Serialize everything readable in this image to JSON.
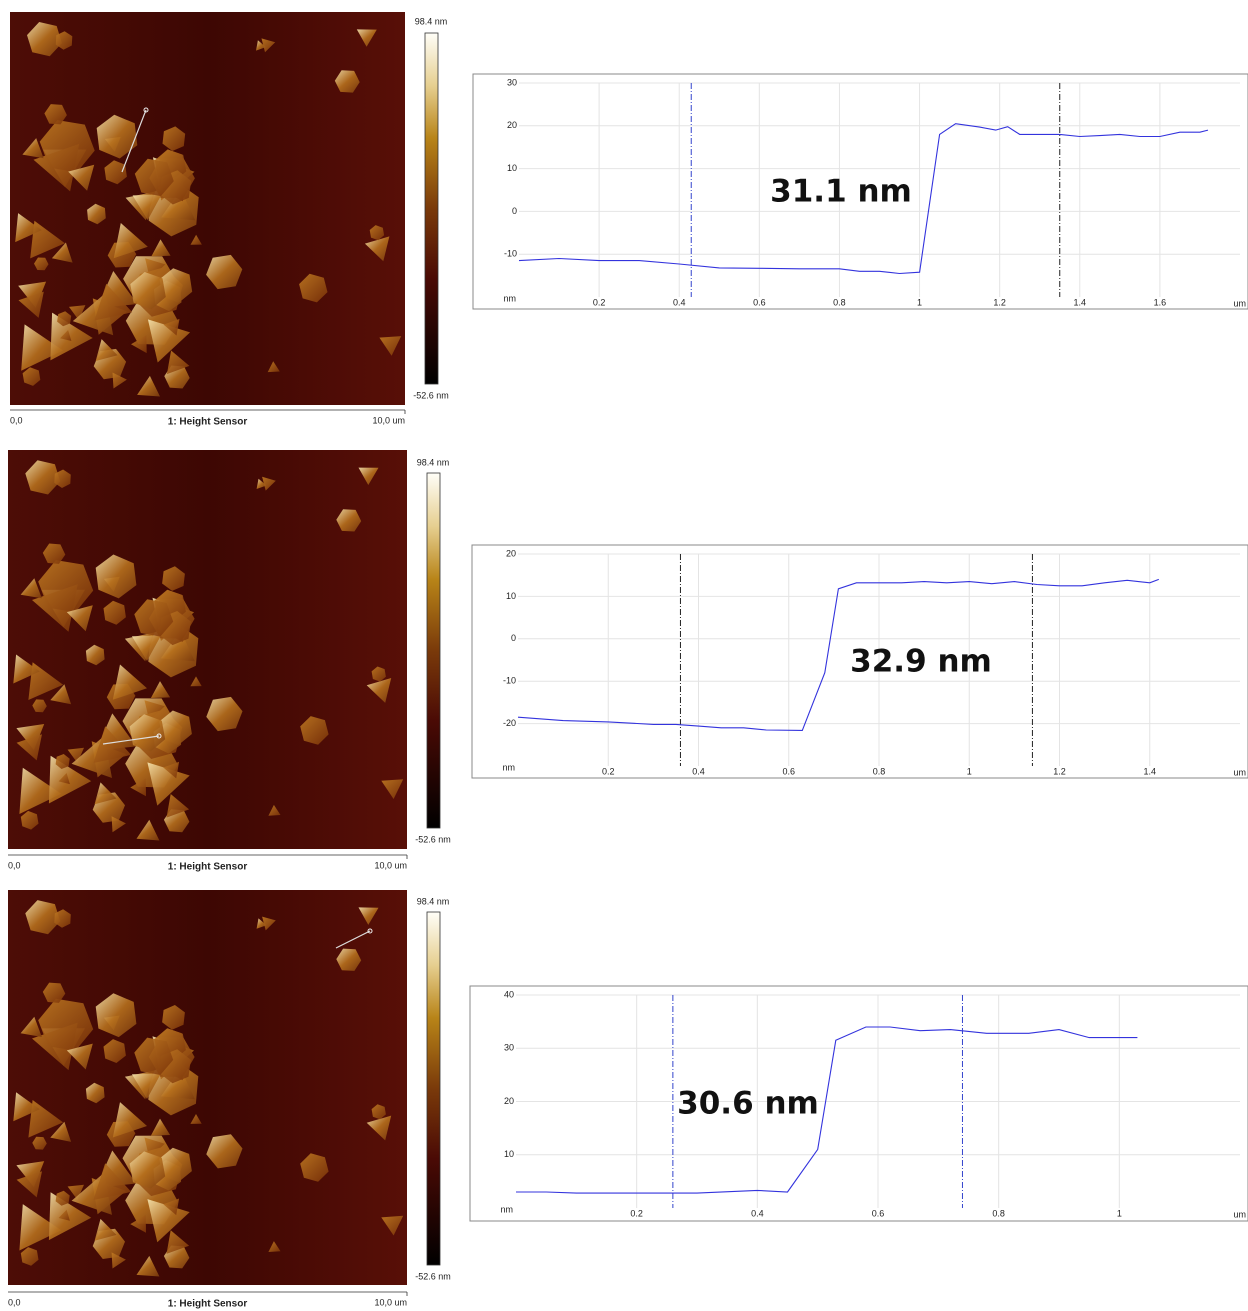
{
  "chart_data": [
    {
      "type": "line",
      "annotation": "31.1 nm",
      "xlabel": "um",
      "ylabel": "nm",
      "image_title": "1: Height Sensor",
      "image_xlabels": [
        "0,0",
        "10,0 um"
      ],
      "colorbar_labels": [
        "98.4 nm",
        "-52.6 nm"
      ],
      "x": [
        0,
        0.1,
        0.2,
        0.3,
        0.4,
        0.5,
        0.6,
        0.7,
        0.8,
        0.85,
        0.9,
        0.95,
        1.0,
        1.05,
        1.09,
        1.15,
        1.19,
        1.22,
        1.25,
        1.3,
        1.35,
        1.4,
        1.45,
        1.5,
        1.55,
        1.6,
        1.65,
        1.7,
        1.72
      ],
      "values": [
        -11.5,
        -11,
        -11.5,
        -11.5,
        -12.3,
        -13.2,
        -13.3,
        -13.4,
        -13.4,
        -14,
        -14,
        -14.5,
        -14.2,
        18,
        20.5,
        19.7,
        19,
        19.8,
        18,
        18,
        18,
        17.5,
        17.7,
        18,
        17.5,
        17.5,
        18.5,
        18.5,
        19
      ],
      "color": "#3333dd",
      "cursors": [
        {
          "x": 0.43,
          "color": "#3344cc"
        },
        {
          "x": 1.35,
          "color": "#222222"
        }
      ],
      "xlim": [
        0,
        1.8
      ],
      "ylim": [
        -20,
        30
      ],
      "xticks": [
        0.2,
        0.4,
        0.6,
        0.8,
        1,
        1.2,
        1.4,
        1.6
      ],
      "yticks": [
        -10,
        0,
        10,
        20,
        30
      ],
      "grid": true
    },
    {
      "type": "line",
      "annotation": "32.9 nm",
      "xlabel": "um",
      "ylabel": "nm",
      "image_title": "1: Height Sensor",
      "image_xlabels": [
        "0,0",
        "10,0 um"
      ],
      "colorbar_labels": [
        "98.4 nm",
        "-52.6 nm"
      ],
      "x": [
        0,
        0.1,
        0.2,
        0.3,
        0.35,
        0.4,
        0.45,
        0.5,
        0.55,
        0.63,
        0.68,
        0.71,
        0.75,
        0.8,
        0.85,
        0.9,
        0.95,
        1.0,
        1.05,
        1.1,
        1.15,
        1.2,
        1.25,
        1.3,
        1.35,
        1.4,
        1.42
      ],
      "values": [
        -18.5,
        -19.3,
        -19.6,
        -20.2,
        -20.2,
        -20.6,
        -21,
        -21,
        -21.5,
        -21.6,
        -8,
        11.8,
        13.2,
        13.2,
        13.2,
        13.5,
        13.2,
        13.5,
        13,
        13.5,
        12.8,
        12.5,
        12.5,
        13.2,
        13.8,
        13.2,
        14
      ],
      "color": "#3333dd",
      "cursors": [
        {
          "x": 0.36,
          "color": "#222222"
        },
        {
          "x": 1.14,
          "color": "#222222"
        }
      ],
      "xlim": [
        0,
        1.6
      ],
      "ylim": [
        -30,
        20
      ],
      "xticks": [
        0.2,
        0.4,
        0.6,
        0.8,
        1,
        1.2,
        1.4
      ],
      "yticks": [
        -20,
        -10,
        0,
        10,
        20
      ],
      "grid": true
    },
    {
      "type": "line",
      "annotation": "30.6 nm",
      "xlabel": "um",
      "ylabel": "nm",
      "image_title": "1: Height Sensor",
      "image_xlabels": [
        "0,0",
        "10,0 um"
      ],
      "colorbar_labels": [
        "98.4 nm",
        "-52.6 nm"
      ],
      "x": [
        0,
        0.05,
        0.1,
        0.2,
        0.3,
        0.4,
        0.45,
        0.5,
        0.53,
        0.58,
        0.62,
        0.67,
        0.72,
        0.78,
        0.85,
        0.9,
        0.95,
        1.0,
        1.03
      ],
      "values": [
        3,
        3,
        2.8,
        2.8,
        2.8,
        3.3,
        3,
        11,
        31.5,
        34,
        34,
        33.3,
        33.5,
        32.8,
        32.8,
        33.5,
        32,
        32,
        32
      ],
      "color": "#3333dd",
      "cursors": [
        {
          "x": 0.26,
          "color": "#3344cc"
        },
        {
          "x": 0.74,
          "color": "#3344cc"
        }
      ],
      "xlim": [
        0,
        1.2
      ],
      "ylim": [
        0,
        40
      ],
      "xticks": [
        0.2,
        0.4,
        0.6,
        0.8,
        1
      ],
      "yticks": [
        10,
        20,
        30,
        40
      ],
      "grid": true
    }
  ]
}
